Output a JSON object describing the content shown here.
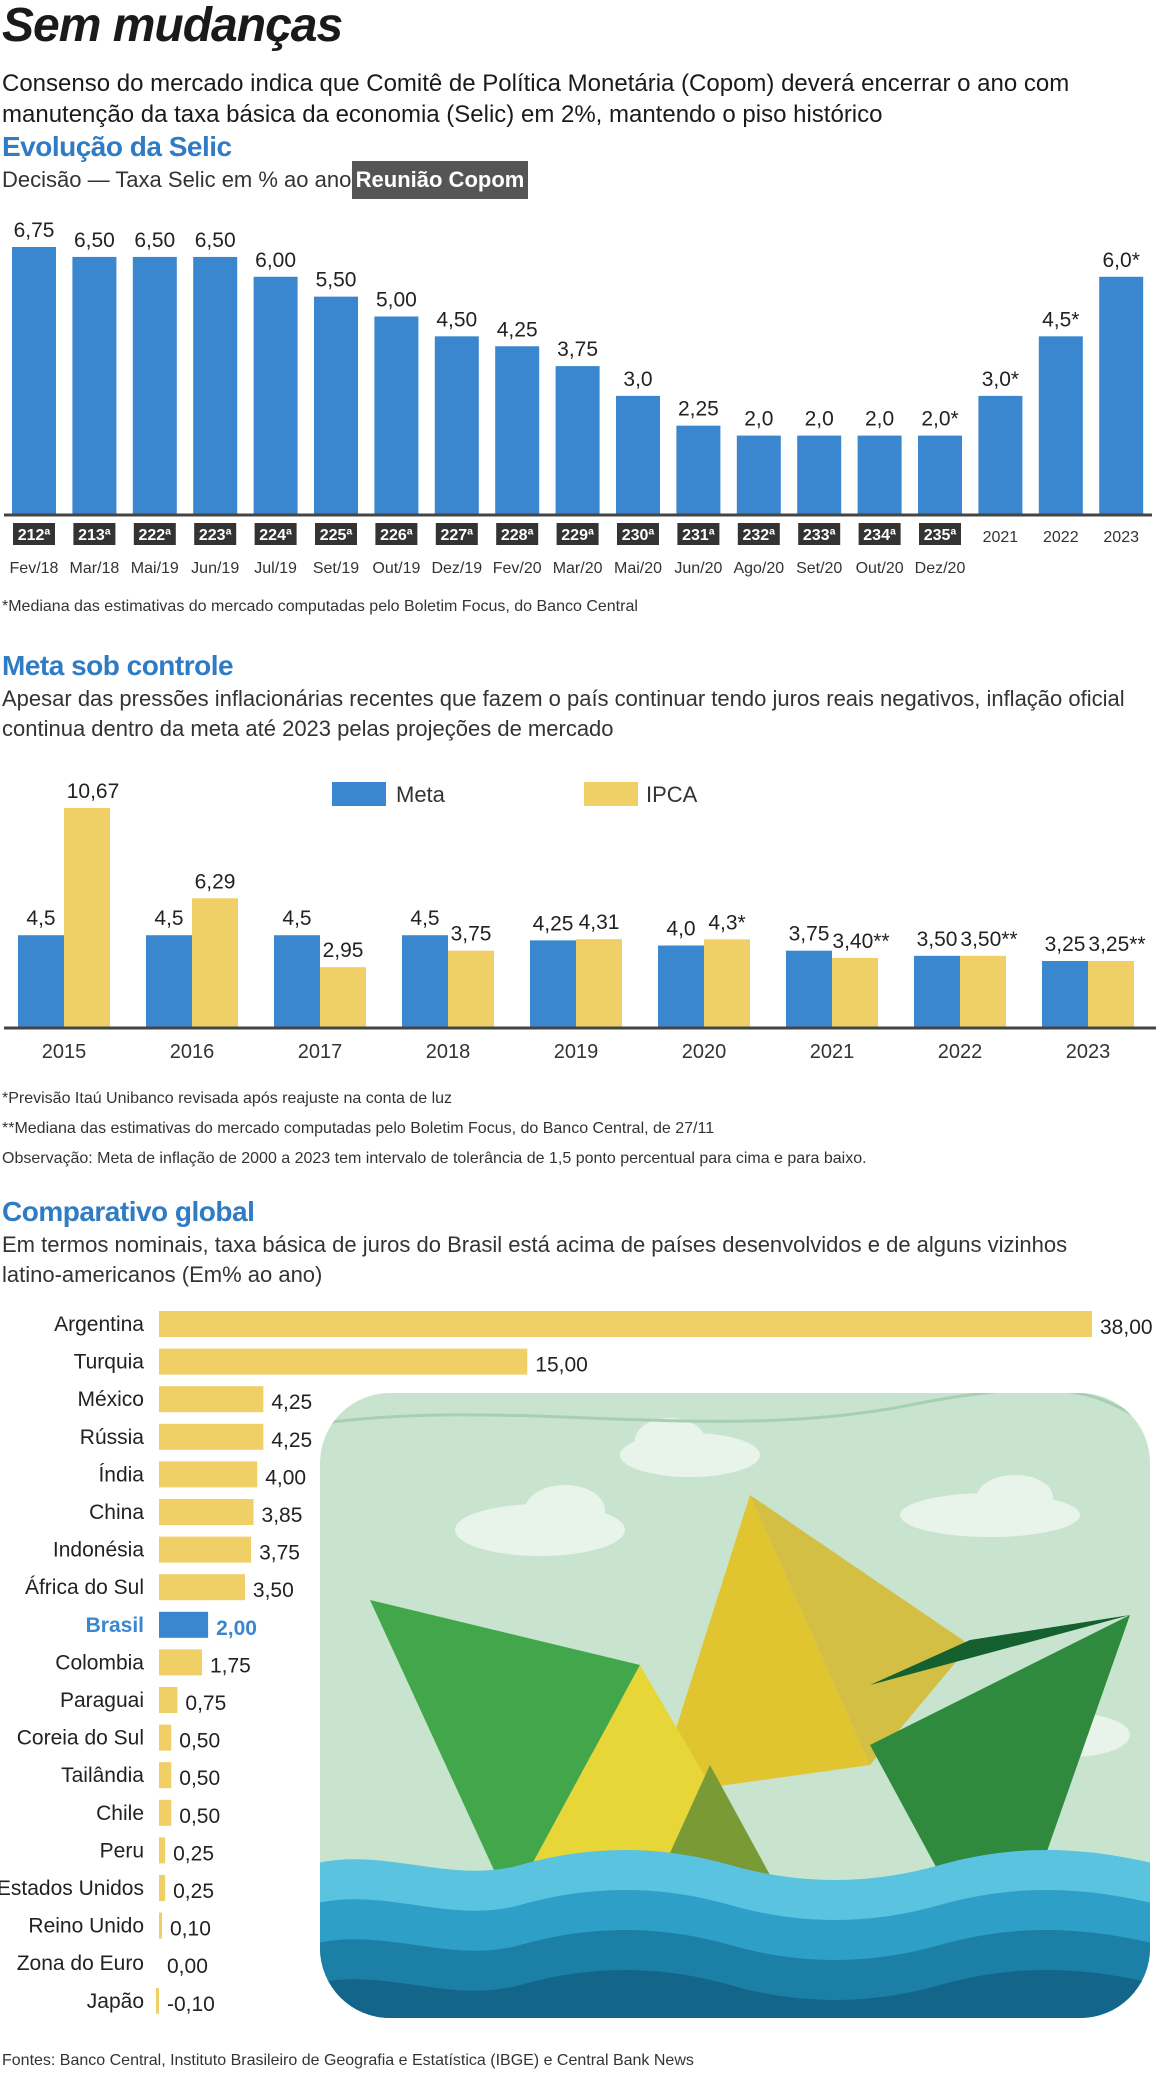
{
  "header": {
    "title": "Sem mudanças",
    "subtitle": "Consenso do mercado indica que Comitê de Política Monetária (Copom) deverá encerrar o ano com manutenção da taxa básica da economia (Selic) em 2%, mantendo o piso histórico"
  },
  "selic": {
    "title": "Evolução da Selic",
    "subtitle": "Decisão — Taxa Selic em % ao ano",
    "badge": "Reunião Copom",
    "footnote": "*Mediana das estimativas do mercado computadas pelo Boletim Focus, do Banco Central"
  },
  "meta": {
    "title": "Meta sob controle",
    "subtitle": "Apesar das pressões inflacionárias recentes que fazem o país continuar tendo juros reais negativos, inflação oficial continua dentro da meta até 2023 pelas projeções de mercado",
    "note1": "*Previsão Itaú Unibanco revisada após reajuste na conta de luz",
    "note2": "**Mediana das estimativas do mercado computadas pelo Boletim Focus, do Banco Central, de 27/11",
    "note3": "Observação: Meta de inflação de 2000 a 2023 tem intervalo de tolerância de 1,5 ponto percentual para cima e para baixo."
  },
  "global": {
    "title": "Comparativo global",
    "subtitle": "Em termos nominais, taxa básica de juros do Brasil está acima de países desenvolvidos e de alguns vizinhos latino-americanos (Em% ao ano)",
    "source": "Fontes: Banco Central, Instituto Brasileiro de Geografia e Estatística (IBGE) e Central Bank News"
  },
  "colors": {
    "blue": "#3a86cf",
    "yellow": "#f0d066",
    "dark_label": "#333333",
    "title_blue": "#2f7bc4"
  },
  "chart_data": [
    {
      "type": "bar",
      "title": "Evolução da Selic",
      "categories": [
        "Fev/18",
        "Mar/18",
        "Mai/19",
        "Jun/19",
        "Jul/19",
        "Set/19",
        "Out/19",
        "Dez/19",
        "Fev/20",
        "Mar/20",
        "Mai/20",
        "Jun/20",
        "Ago/20",
        "Set/20",
        "Out/20",
        "Dez/20",
        "2021",
        "2022",
        "2023"
      ],
      "meetings": [
        "212ª",
        "213ª",
        "222ª",
        "223ª",
        "224ª",
        "225ª",
        "226ª",
        "227ª",
        "228ª",
        "229ª",
        "230ª",
        "231ª",
        "232ª",
        "233ª",
        "234ª",
        "235ª",
        "",
        "",
        ""
      ],
      "values": [
        6.75,
        6.5,
        6.5,
        6.5,
        6.0,
        5.5,
        5.0,
        4.5,
        4.25,
        3.75,
        3.0,
        2.25,
        2.0,
        2.0,
        2.0,
        2.0,
        3.0,
        4.5,
        6.0
      ],
      "value_labels": [
        "6,75",
        "6,50",
        "6,50",
        "6,50",
        "6,00",
        "5,50",
        "5,00",
        "4,50",
        "4,25",
        "3,75",
        "3,0",
        "2,25",
        "2,0",
        "2,0",
        "2,0",
        "2,0*",
        "3,0*",
        "4,5*",
        "6,0*"
      ],
      "ylim": [
        0,
        7
      ]
    },
    {
      "type": "bar",
      "title": "Meta sob controle",
      "categories": [
        "2015",
        "2016",
        "2017",
        "2018",
        "2019",
        "2020",
        "2021",
        "2022",
        "2023"
      ],
      "series": [
        {
          "name": "Meta",
          "color": "#3a86cf",
          "values": [
            4.5,
            4.5,
            4.5,
            4.5,
            4.25,
            4.0,
            3.75,
            3.5,
            3.25
          ],
          "labels": [
            "4,5",
            "4,5",
            "4,5",
            "4,5",
            "4,25",
            "4,0",
            "3,75",
            "3,50",
            "3,25"
          ]
        },
        {
          "name": "IPCA",
          "color": "#f0d066",
          "values": [
            10.67,
            6.29,
            2.95,
            3.75,
            4.31,
            4.3,
            3.4,
            3.5,
            3.25
          ],
          "labels": [
            "10,67",
            "6,29",
            "2,95",
            "3,75",
            "4,31",
            "4,3*",
            "3,40**",
            "3,50**",
            "3,25**"
          ]
        }
      ],
      "legend": "top-center",
      "ylim": [
        0,
        11
      ]
    },
    {
      "type": "bar",
      "orientation": "horizontal",
      "title": "Comparativo global",
      "categories": [
        "Argentina",
        "Turquia",
        "México",
        "Rússia",
        "Índia",
        "China",
        "Indonésia",
        "África do Sul",
        "Brasil",
        "Colombia",
        "Paraguai",
        "Coreia do Sul",
        "Tailândia",
        "Chile",
        "Peru",
        "Estados Unidos",
        "Reino Unido",
        "Zona do Euro",
        "Japão"
      ],
      "values": [
        38.0,
        15.0,
        4.25,
        4.25,
        4.0,
        3.85,
        3.75,
        3.5,
        2.0,
        1.75,
        0.75,
        0.5,
        0.5,
        0.5,
        0.25,
        0.25,
        0.1,
        0.0,
        -0.1
      ],
      "value_labels": [
        "38,00",
        "15,00",
        "4,25",
        "4,25",
        "4,00",
        "3,85",
        "3,75",
        "3,50",
        "2,00",
        "1,75",
        "0,75",
        "0,50",
        "0,50",
        "0,50",
        "0,25",
        "0,25",
        "0,10",
        "0,00",
        "-0,10"
      ],
      "highlight": "Brasil",
      "xlim": [
        0,
        38
      ]
    }
  ]
}
